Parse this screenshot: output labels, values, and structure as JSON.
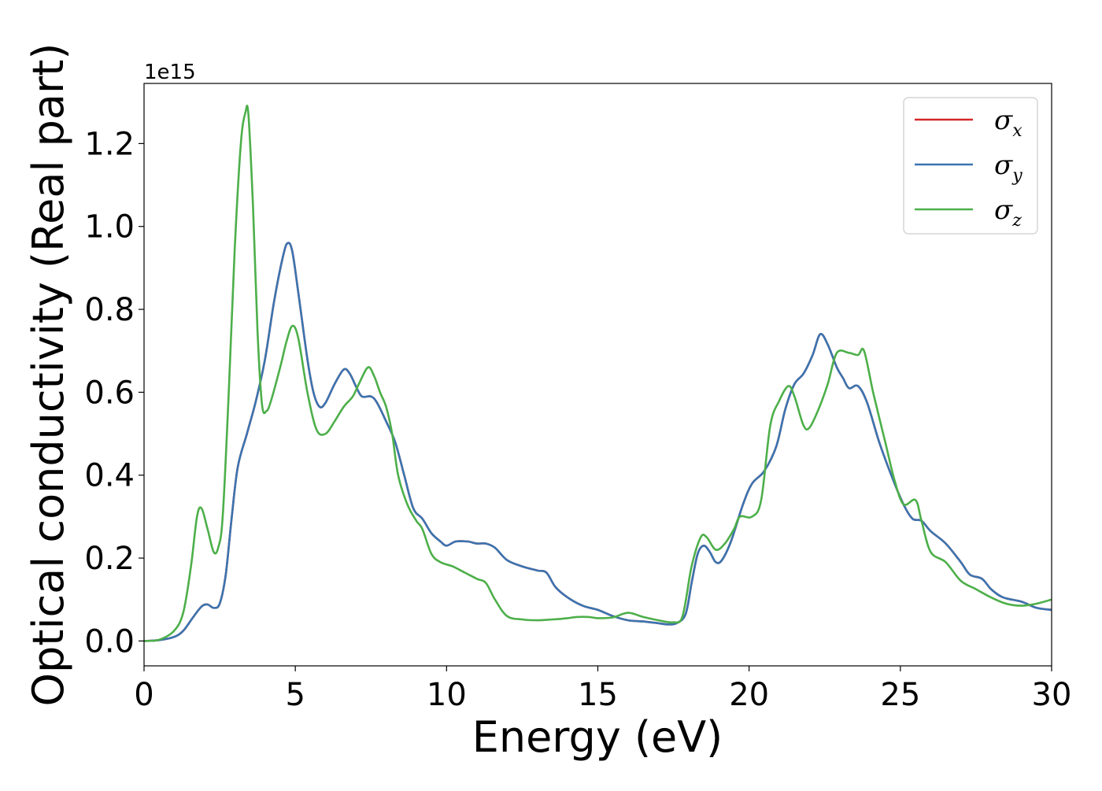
{
  "chart_data": {
    "type": "line",
    "title": "",
    "xlabel": "Energy (eV)",
    "ylabel": "Optical conductivity (Real part)",
    "y_offset_text": "1e15",
    "xlim": [
      0,
      30
    ],
    "ylim": [
      -0.06,
      1.345
    ],
    "x_ticks": [
      0,
      5,
      10,
      15,
      20,
      25,
      30
    ],
    "x_tick_labels": [
      "0",
      "5",
      "10",
      "15",
      "20",
      "25",
      "30"
    ],
    "y_ticks": [
      0.0,
      0.2,
      0.4,
      0.6,
      0.8,
      1.0,
      1.2
    ],
    "y_tick_labels": [
      "0.0",
      "0.2",
      "0.4",
      "0.6",
      "0.8",
      "1.0",
      "1.2"
    ],
    "grid": false,
    "legend_position": "top-right",
    "series": [
      {
        "name": "σx",
        "symbol": "σ",
        "subscript": "x",
        "color": "#d62728",
        "points": [
          [
            0,
            0
          ],
          [
            0.5,
            0.002
          ],
          [
            1.0,
            0.01
          ],
          [
            1.3,
            0.025
          ],
          [
            1.6,
            0.055
          ],
          [
            1.9,
            0.083
          ],
          [
            2.1,
            0.088
          ],
          [
            2.3,
            0.08
          ],
          [
            2.5,
            0.09
          ],
          [
            2.7,
            0.16
          ],
          [
            2.9,
            0.3
          ],
          [
            3.1,
            0.42
          ],
          [
            3.4,
            0.5
          ],
          [
            3.7,
            0.58
          ],
          [
            4.0,
            0.68
          ],
          [
            4.3,
            0.82
          ],
          [
            4.6,
            0.93
          ],
          [
            4.75,
            0.96
          ],
          [
            4.9,
            0.94
          ],
          [
            5.1,
            0.84
          ],
          [
            5.4,
            0.68
          ],
          [
            5.6,
            0.6
          ],
          [
            5.8,
            0.565
          ],
          [
            6.0,
            0.575
          ],
          [
            6.3,
            0.62
          ],
          [
            6.6,
            0.655
          ],
          [
            6.8,
            0.645
          ],
          [
            7.0,
            0.615
          ],
          [
            7.2,
            0.59
          ],
          [
            7.5,
            0.59
          ],
          [
            7.7,
            0.575
          ],
          [
            8.0,
            0.53
          ],
          [
            8.3,
            0.48
          ],
          [
            8.6,
            0.4
          ],
          [
            8.9,
            0.32
          ],
          [
            9.2,
            0.295
          ],
          [
            9.5,
            0.26
          ],
          [
            9.8,
            0.24
          ],
          [
            10.0,
            0.23
          ],
          [
            10.3,
            0.24
          ],
          [
            10.7,
            0.24
          ],
          [
            11.0,
            0.235
          ],
          [
            11.3,
            0.235
          ],
          [
            11.6,
            0.225
          ],
          [
            12.0,
            0.195
          ],
          [
            12.5,
            0.18
          ],
          [
            13.0,
            0.17
          ],
          [
            13.3,
            0.165
          ],
          [
            13.6,
            0.13
          ],
          [
            14.0,
            0.105
          ],
          [
            14.5,
            0.085
          ],
          [
            15.0,
            0.075
          ],
          [
            15.5,
            0.06
          ],
          [
            16.0,
            0.05
          ],
          [
            16.5,
            0.047
          ],
          [
            17.0,
            0.043
          ],
          [
            17.3,
            0.04
          ],
          [
            17.6,
            0.043
          ],
          [
            17.9,
            0.065
          ],
          [
            18.1,
            0.14
          ],
          [
            18.3,
            0.21
          ],
          [
            18.5,
            0.23
          ],
          [
            18.7,
            0.215
          ],
          [
            18.9,
            0.19
          ],
          [
            19.1,
            0.195
          ],
          [
            19.4,
            0.24
          ],
          [
            19.8,
            0.33
          ],
          [
            20.1,
            0.38
          ],
          [
            20.5,
            0.41
          ],
          [
            20.9,
            0.47
          ],
          [
            21.2,
            0.56
          ],
          [
            21.5,
            0.62
          ],
          [
            21.8,
            0.645
          ],
          [
            22.1,
            0.69
          ],
          [
            22.35,
            0.74
          ],
          [
            22.6,
            0.715
          ],
          [
            22.9,
            0.66
          ],
          [
            23.1,
            0.635
          ],
          [
            23.3,
            0.61
          ],
          [
            23.6,
            0.615
          ],
          [
            23.9,
            0.575
          ],
          [
            24.3,
            0.48
          ],
          [
            24.7,
            0.4
          ],
          [
            25.1,
            0.33
          ],
          [
            25.4,
            0.295
          ],
          [
            25.7,
            0.29
          ],
          [
            26.0,
            0.265
          ],
          [
            26.5,
            0.235
          ],
          [
            27.0,
            0.19
          ],
          [
            27.3,
            0.16
          ],
          [
            27.7,
            0.15
          ],
          [
            28.0,
            0.125
          ],
          [
            28.4,
            0.105
          ],
          [
            29.0,
            0.095
          ],
          [
            29.5,
            0.08
          ],
          [
            30.0,
            0.075
          ]
        ]
      },
      {
        "name": "σy",
        "symbol": "σ",
        "subscript": "y",
        "color": "#3a74b0",
        "points": [
          [
            0,
            0
          ],
          [
            0.5,
            0.002
          ],
          [
            1.0,
            0.01
          ],
          [
            1.3,
            0.025
          ],
          [
            1.6,
            0.055
          ],
          [
            1.9,
            0.083
          ],
          [
            2.1,
            0.088
          ],
          [
            2.3,
            0.08
          ],
          [
            2.5,
            0.09
          ],
          [
            2.7,
            0.16
          ],
          [
            2.9,
            0.3
          ],
          [
            3.1,
            0.42
          ],
          [
            3.4,
            0.5
          ],
          [
            3.7,
            0.58
          ],
          [
            4.0,
            0.68
          ],
          [
            4.3,
            0.82
          ],
          [
            4.6,
            0.93
          ],
          [
            4.75,
            0.96
          ],
          [
            4.9,
            0.94
          ],
          [
            5.1,
            0.84
          ],
          [
            5.4,
            0.68
          ],
          [
            5.6,
            0.6
          ],
          [
            5.8,
            0.565
          ],
          [
            6.0,
            0.575
          ],
          [
            6.3,
            0.62
          ],
          [
            6.6,
            0.655
          ],
          [
            6.8,
            0.645
          ],
          [
            7.0,
            0.615
          ],
          [
            7.2,
            0.59
          ],
          [
            7.5,
            0.59
          ],
          [
            7.7,
            0.575
          ],
          [
            8.0,
            0.53
          ],
          [
            8.3,
            0.48
          ],
          [
            8.6,
            0.4
          ],
          [
            8.9,
            0.32
          ],
          [
            9.2,
            0.295
          ],
          [
            9.5,
            0.26
          ],
          [
            9.8,
            0.24
          ],
          [
            10.0,
            0.23
          ],
          [
            10.3,
            0.24
          ],
          [
            10.7,
            0.24
          ],
          [
            11.0,
            0.235
          ],
          [
            11.3,
            0.235
          ],
          [
            11.6,
            0.225
          ],
          [
            12.0,
            0.195
          ],
          [
            12.5,
            0.18
          ],
          [
            13.0,
            0.17
          ],
          [
            13.3,
            0.165
          ],
          [
            13.6,
            0.13
          ],
          [
            14.0,
            0.105
          ],
          [
            14.5,
            0.085
          ],
          [
            15.0,
            0.075
          ],
          [
            15.5,
            0.06
          ],
          [
            16.0,
            0.05
          ],
          [
            16.5,
            0.047
          ],
          [
            17.0,
            0.043
          ],
          [
            17.3,
            0.04
          ],
          [
            17.6,
            0.043
          ],
          [
            17.9,
            0.065
          ],
          [
            18.1,
            0.14
          ],
          [
            18.3,
            0.21
          ],
          [
            18.5,
            0.23
          ],
          [
            18.7,
            0.215
          ],
          [
            18.9,
            0.19
          ],
          [
            19.1,
            0.195
          ],
          [
            19.4,
            0.24
          ],
          [
            19.8,
            0.33
          ],
          [
            20.1,
            0.38
          ],
          [
            20.5,
            0.41
          ],
          [
            20.9,
            0.47
          ],
          [
            21.2,
            0.56
          ],
          [
            21.5,
            0.62
          ],
          [
            21.8,
            0.645
          ],
          [
            22.1,
            0.69
          ],
          [
            22.35,
            0.74
          ],
          [
            22.6,
            0.715
          ],
          [
            22.9,
            0.66
          ],
          [
            23.1,
            0.635
          ],
          [
            23.3,
            0.61
          ],
          [
            23.6,
            0.615
          ],
          [
            23.9,
            0.575
          ],
          [
            24.3,
            0.48
          ],
          [
            24.7,
            0.4
          ],
          [
            25.1,
            0.33
          ],
          [
            25.4,
            0.295
          ],
          [
            25.7,
            0.29
          ],
          [
            26.0,
            0.265
          ],
          [
            26.5,
            0.235
          ],
          [
            27.0,
            0.19
          ],
          [
            27.3,
            0.16
          ],
          [
            27.7,
            0.15
          ],
          [
            28.0,
            0.125
          ],
          [
            28.4,
            0.105
          ],
          [
            29.0,
            0.095
          ],
          [
            29.5,
            0.08
          ],
          [
            30.0,
            0.075
          ]
        ]
      },
      {
        "name": "σz",
        "symbol": "σ",
        "subscript": "z",
        "color": "#4daf4a",
        "points": [
          [
            0,
            0
          ],
          [
            0.5,
            0.003
          ],
          [
            1.0,
            0.025
          ],
          [
            1.3,
            0.07
          ],
          [
            1.55,
            0.18
          ],
          [
            1.75,
            0.3
          ],
          [
            1.9,
            0.32
          ],
          [
            2.1,
            0.27
          ],
          [
            2.3,
            0.215
          ],
          [
            2.45,
            0.225
          ],
          [
            2.6,
            0.3
          ],
          [
            2.8,
            0.6
          ],
          [
            3.0,
            0.95
          ],
          [
            3.2,
            1.2
          ],
          [
            3.35,
            1.275
          ],
          [
            3.45,
            1.27
          ],
          [
            3.6,
            1.05
          ],
          [
            3.75,
            0.75
          ],
          [
            3.9,
            0.57
          ],
          [
            4.05,
            0.555
          ],
          [
            4.2,
            0.58
          ],
          [
            4.5,
            0.66
          ],
          [
            4.7,
            0.72
          ],
          [
            4.9,
            0.76
          ],
          [
            5.1,
            0.73
          ],
          [
            5.4,
            0.6
          ],
          [
            5.7,
            0.51
          ],
          [
            6.0,
            0.5
          ],
          [
            6.3,
            0.53
          ],
          [
            6.6,
            0.565
          ],
          [
            6.9,
            0.59
          ],
          [
            7.1,
            0.62
          ],
          [
            7.4,
            0.66
          ],
          [
            7.6,
            0.64
          ],
          [
            7.8,
            0.6
          ],
          [
            8.0,
            0.565
          ],
          [
            8.2,
            0.5
          ],
          [
            8.4,
            0.4
          ],
          [
            8.7,
            0.33
          ],
          [
            9.0,
            0.29
          ],
          [
            9.2,
            0.27
          ],
          [
            9.5,
            0.21
          ],
          [
            9.8,
            0.19
          ],
          [
            10.2,
            0.18
          ],
          [
            10.6,
            0.165
          ],
          [
            11.0,
            0.15
          ],
          [
            11.3,
            0.14
          ],
          [
            11.6,
            0.1
          ],
          [
            12.0,
            0.06
          ],
          [
            12.5,
            0.052
          ],
          [
            13.0,
            0.05
          ],
          [
            13.5,
            0.052
          ],
          [
            14.0,
            0.055
          ],
          [
            14.3,
            0.058
          ],
          [
            14.7,
            0.058
          ],
          [
            15.0,
            0.055
          ],
          [
            15.5,
            0.057
          ],
          [
            16.0,
            0.068
          ],
          [
            16.5,
            0.058
          ],
          [
            17.0,
            0.05
          ],
          [
            17.5,
            0.045
          ],
          [
            17.8,
            0.06
          ],
          [
            18.1,
            0.18
          ],
          [
            18.4,
            0.25
          ],
          [
            18.6,
            0.25
          ],
          [
            18.9,
            0.22
          ],
          [
            19.2,
            0.235
          ],
          [
            19.5,
            0.27
          ],
          [
            19.7,
            0.3
          ],
          [
            20.1,
            0.3
          ],
          [
            20.4,
            0.34
          ],
          [
            20.7,
            0.52
          ],
          [
            21.0,
            0.58
          ],
          [
            21.3,
            0.615
          ],
          [
            21.5,
            0.59
          ],
          [
            21.8,
            0.52
          ],
          [
            22.0,
            0.515
          ],
          [
            22.3,
            0.56
          ],
          [
            22.6,
            0.62
          ],
          [
            22.9,
            0.695
          ],
          [
            23.3,
            0.695
          ],
          [
            23.6,
            0.69
          ],
          [
            23.8,
            0.7
          ],
          [
            24.1,
            0.6
          ],
          [
            24.5,
            0.48
          ],
          [
            24.8,
            0.39
          ],
          [
            25.1,
            0.33
          ],
          [
            25.5,
            0.34
          ],
          [
            25.7,
            0.29
          ],
          [
            26.0,
            0.215
          ],
          [
            26.5,
            0.19
          ],
          [
            27.0,
            0.145
          ],
          [
            27.5,
            0.125
          ],
          [
            28.0,
            0.105
          ],
          [
            28.5,
            0.09
          ],
          [
            29.0,
            0.085
          ],
          [
            29.5,
            0.09
          ],
          [
            30.0,
            0.1
          ]
        ]
      }
    ]
  }
}
